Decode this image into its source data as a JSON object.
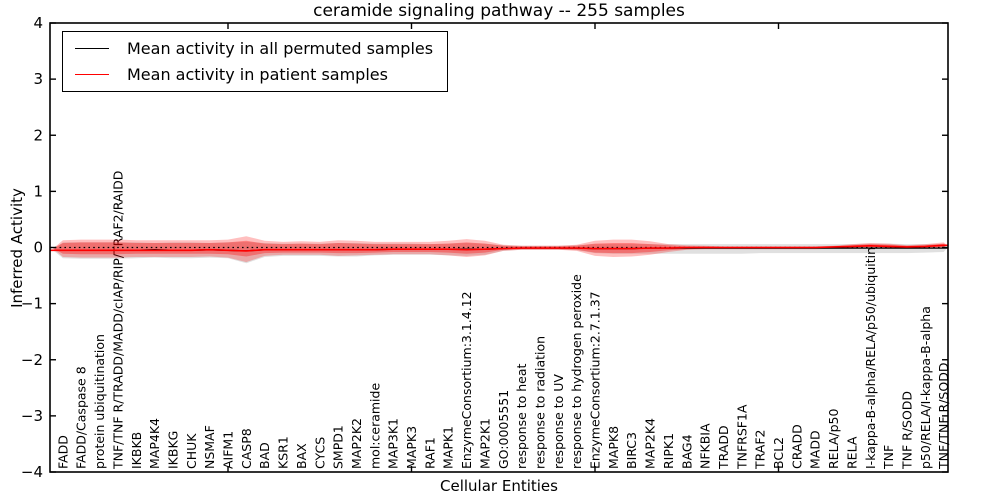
{
  "chart_data": {
    "type": "line",
    "title": "ceramide signaling pathway -- 255 samples",
    "xlabel": "Cellular Entities",
    "ylabel": "Inferred Activity",
    "ylim": [
      -4,
      4
    ],
    "yticks": [
      -4,
      -3,
      -2,
      -1,
      0,
      1,
      2,
      3,
      4
    ],
    "x_major_tick_indices": [
      9,
      19,
      29,
      39
    ],
    "grid": false,
    "legend_position": "upper left",
    "zero_line": {
      "style": "dotted",
      "color": "#000000",
      "value": 0
    },
    "categories": [
      "FADD",
      "FADD/Caspase 8",
      "protein ubiquitination",
      "TNF/TNF R/TRADD/MADD/cIAP/RIP/TRAF2/RAIDD",
      "IKBKB",
      "MAP4K4",
      "IKBKG",
      "CHUK",
      "NSMAF",
      "AIFM1",
      "CASP8",
      "BAD",
      "KSR1",
      "BAX",
      "CYCS",
      "SMPD1",
      "MAP2K2",
      "mol:ceramide",
      "MAP3K1",
      "MAPK3",
      "RAF1",
      "MAPK1",
      "EnzymeConsortium:3.1.4.12",
      "MAP2K1",
      "GO:0005551",
      "response to heat",
      "response to radiation",
      "response to UV",
      "response to hydrogen peroxide",
      "EnzymeConsortium:2.7.1.37",
      "MAPK8",
      "BIRC3",
      "MAP2K4",
      "RIPK1",
      "BAG4",
      "NFKBIA",
      "TRADD",
      "TNFRSF1A",
      "TRAF2",
      "BCL2",
      "CRADD",
      "MADD",
      "RELA/p50",
      "RELA",
      "I-kappa-B-alpha/RELA/p50/ubiquitin",
      "TNF",
      "TNF R/SODD",
      "p50/RELA/I-kappa-B-alpha",
      "TNF/TNF R/SODD"
    ],
    "series": [
      {
        "name": "Mean activity in all permuted samples",
        "color": "#000000",
        "line_width": 1.3,
        "values": [
          -0.05,
          -0.05,
          -0.05,
          -0.05,
          -0.05,
          -0.04,
          -0.05,
          -0.05,
          -0.04,
          -0.05,
          -0.06,
          -0.04,
          -0.04,
          -0.04,
          -0.04,
          -0.04,
          -0.04,
          -0.04,
          -0.03,
          -0.03,
          -0.03,
          -0.03,
          -0.03,
          -0.03,
          -0.02,
          -0.01,
          -0.01,
          -0.01,
          -0.01,
          -0.02,
          -0.02,
          -0.02,
          -0.01,
          -0.01,
          -0.01,
          -0.01,
          -0.01,
          -0.01,
          -0.01,
          -0.01,
          -0.01,
          -0.01,
          -0.01,
          -0.01,
          -0.01,
          -0.01,
          -0.01,
          -0.01,
          -0.01
        ]
      },
      {
        "name": "Mean activity in patient samples",
        "color": "#ff0000",
        "line_width": 1.6,
        "values": [
          -0.05,
          -0.05,
          -0.05,
          -0.05,
          -0.05,
          -0.05,
          -0.05,
          -0.05,
          -0.04,
          -0.05,
          -0.06,
          -0.04,
          -0.04,
          -0.04,
          -0.04,
          -0.04,
          -0.04,
          -0.04,
          -0.03,
          -0.03,
          -0.03,
          -0.03,
          -0.04,
          -0.03,
          -0.02,
          -0.01,
          -0.01,
          -0.01,
          -0.01,
          -0.02,
          -0.02,
          -0.02,
          -0.01,
          -0.01,
          0,
          0,
          0,
          0,
          0,
          0,
          0,
          0,
          0.01,
          0.02,
          0.03,
          0.02,
          0.01,
          0.02,
          0.04
        ]
      }
    ],
    "bands": [
      {
        "name": "permuted-sample-range",
        "color": "rgba(0,0,0,0.12)",
        "upper": [
          0.09,
          0.09,
          0.09,
          0.09,
          0.09,
          0.08,
          0.09,
          0.09,
          0.08,
          0.09,
          0.1,
          0.08,
          0.07,
          0.07,
          0.07,
          0.08,
          0.08,
          0.07,
          0.07,
          0.07,
          0.06,
          0.07,
          0.08,
          0.07,
          0.04,
          0.03,
          0.03,
          0.03,
          0.04,
          0.06,
          0.06,
          0.06,
          0.06,
          0.06,
          0.06,
          0.06,
          0.06,
          0.06,
          0.06,
          0.06,
          0.06,
          0.06,
          0.06,
          0.06,
          0.07,
          0.07,
          0.06,
          0.06,
          0.06
        ],
        "lower": [
          -0.19,
          -0.2,
          -0.2,
          -0.2,
          -0.19,
          -0.18,
          -0.19,
          -0.19,
          -0.18,
          -0.19,
          -0.28,
          -0.17,
          -0.15,
          -0.15,
          -0.15,
          -0.16,
          -0.16,
          -0.14,
          -0.13,
          -0.13,
          -0.13,
          -0.14,
          -0.15,
          -0.13,
          -0.06,
          -0.04,
          -0.04,
          -0.04,
          -0.05,
          -0.1,
          -0.11,
          -0.11,
          -0.11,
          -0.11,
          -0.11,
          -0.11,
          -0.11,
          -0.11,
          -0.1,
          -0.1,
          -0.1,
          -0.1,
          -0.1,
          -0.1,
          -0.1,
          -0.1,
          -0.1,
          -0.09,
          -0.08
        ]
      },
      {
        "name": "patient-range-outer",
        "color": "rgba(255,0,0,0.25)",
        "upper": [
          0.13,
          0.14,
          0.14,
          0.14,
          0.13,
          0.13,
          0.13,
          0.13,
          0.13,
          0.14,
          0.2,
          0.12,
          0.1,
          0.11,
          0.1,
          0.13,
          0.12,
          0.1,
          0.1,
          0.1,
          0.1,
          0.12,
          0.15,
          0.12,
          0.05,
          0.03,
          0.03,
          0.03,
          0.05,
          0.12,
          0.14,
          0.14,
          0.11,
          0.06,
          0.04,
          0.03,
          0.02,
          0.02,
          0.02,
          0.02,
          0.02,
          0.02,
          0.03,
          0.06,
          0.08,
          0.07,
          0.04,
          0.06,
          0.09
        ],
        "lower": [
          -0.17,
          -0.18,
          -0.18,
          -0.18,
          -0.17,
          -0.17,
          -0.17,
          -0.17,
          -0.16,
          -0.18,
          -0.26,
          -0.15,
          -0.13,
          -0.13,
          -0.13,
          -0.15,
          -0.14,
          -0.13,
          -0.12,
          -0.12,
          -0.12,
          -0.14,
          -0.17,
          -0.14,
          -0.06,
          -0.04,
          -0.04,
          -0.04,
          -0.06,
          -0.15,
          -0.17,
          -0.16,
          -0.13,
          -0.08,
          -0.04,
          -0.03,
          -0.03,
          -0.03,
          -0.03,
          -0.03,
          -0.03,
          -0.03,
          -0.02,
          -0.02,
          0,
          -0.01,
          -0.02,
          -0.01,
          0
        ]
      },
      {
        "name": "patient-range-inner",
        "color": "rgba(255,0,0,0.33)",
        "upper": [
          0.08,
          0.09,
          0.09,
          0.09,
          0.08,
          0.08,
          0.08,
          0.08,
          0.08,
          0.09,
          0.12,
          0.07,
          0.06,
          0.07,
          0.06,
          0.08,
          0.07,
          0.06,
          0.06,
          0.06,
          0.06,
          0.07,
          0.09,
          0.07,
          0.03,
          0.02,
          0.02,
          0.02,
          0.03,
          0.07,
          0.08,
          0.08,
          0.06,
          0.04,
          0.02,
          0.02,
          0.01,
          0.01,
          0.01,
          0.01,
          0.01,
          0.01,
          0.02,
          0.04,
          0.06,
          0.05,
          0.03,
          0.04,
          0.07
        ],
        "lower": [
          -0.11,
          -0.12,
          -0.12,
          -0.12,
          -0.11,
          -0.11,
          -0.11,
          -0.11,
          -0.11,
          -0.12,
          -0.16,
          -0.1,
          -0.09,
          -0.09,
          -0.09,
          -0.1,
          -0.1,
          -0.09,
          -0.08,
          -0.08,
          -0.08,
          -0.09,
          -0.11,
          -0.09,
          -0.04,
          -0.03,
          -0.03,
          -0.03,
          -0.04,
          -0.09,
          -0.1,
          -0.1,
          -0.08,
          -0.05,
          -0.03,
          -0.02,
          -0.02,
          -0.02,
          -0.02,
          -0.02,
          -0.02,
          -0.02,
          -0.01,
          0,
          0.01,
          0,
          -0.01,
          0,
          0.01
        ]
      }
    ]
  }
}
